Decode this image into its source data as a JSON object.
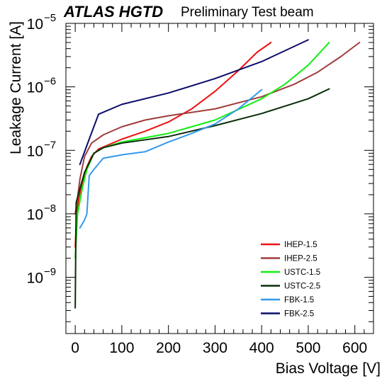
{
  "header": {
    "experiment": "ATLAS HGTD",
    "status": "Preliminary Test beam"
  },
  "chart_data": {
    "type": "line",
    "xlabel": "Bias Voltage [V]",
    "ylabel": "Leakage Current [A]",
    "xlim": [
      -20,
      640
    ],
    "ylim": [
      1.3e-10,
      1e-05
    ],
    "yscale": "log",
    "x_ticks": [
      "0",
      "100",
      "200",
      "300",
      "400",
      "500",
      "600"
    ],
    "y_ticks": [
      {
        "base": "10",
        "exp": "−9"
      },
      {
        "base": "10",
        "exp": "−8"
      },
      {
        "base": "10",
        "exp": "−7"
      },
      {
        "base": "10",
        "exp": "−6"
      },
      {
        "base": "10",
        "exp": "−5"
      }
    ],
    "legend_position": "bottom-right",
    "series": [
      {
        "name": "IHEP-1.5",
        "color": "#ee1111",
        "points": [
          [
            0,
            3e-09
          ],
          [
            3,
            1e-08
          ],
          [
            8,
            1.8e-08
          ],
          [
            15,
            3e-08
          ],
          [
            25,
            5.5e-08
          ],
          [
            35,
            8e-08
          ],
          [
            50,
            1.05e-07
          ],
          [
            100,
            1.5e-07
          ],
          [
            150,
            2e-07
          ],
          [
            200,
            2.8e-07
          ],
          [
            250,
            4.5e-07
          ],
          [
            300,
            8.5e-07
          ],
          [
            350,
            1.8e-06
          ],
          [
            390,
            3.5e-06
          ],
          [
            420,
            5e-06
          ]
        ]
      },
      {
        "name": "IHEP-2.5",
        "color": "#a03c3c",
        "points": [
          [
            0,
            1e-08
          ],
          [
            5,
            1.8e-08
          ],
          [
            10,
            3.5e-08
          ],
          [
            20,
            8e-08
          ],
          [
            35,
            1.3e-07
          ],
          [
            60,
            1.75e-07
          ],
          [
            100,
            2.35e-07
          ],
          [
            150,
            3e-07
          ],
          [
            200,
            3.5e-07
          ],
          [
            300,
            4.5e-07
          ],
          [
            400,
            7e-07
          ],
          [
            470,
            1.1e-06
          ],
          [
            520,
            1.7e-06
          ],
          [
            570,
            3e-06
          ],
          [
            610,
            5e-06
          ]
        ]
      },
      {
        "name": "USTC-1.5",
        "color": "#11ee11",
        "points": [
          [
            0,
            2e-09
          ],
          [
            5,
            1e-08
          ],
          [
            15,
            2.5e-08
          ],
          [
            25,
            5e-08
          ],
          [
            40,
            9e-08
          ],
          [
            60,
            1.1e-07
          ],
          [
            100,
            1.35e-07
          ],
          [
            200,
            1.85e-07
          ],
          [
            300,
            3e-07
          ],
          [
            400,
            6.5e-07
          ],
          [
            450,
            1.1e-06
          ],
          [
            500,
            2.2e-06
          ],
          [
            545,
            5e-06
          ]
        ]
      },
      {
        "name": "USTC-2.5",
        "color": "#0a2e0a",
        "points": [
          [
            0,
            3.3e-10
          ],
          [
            2,
            1.5e-08
          ],
          [
            10,
            2.5e-08
          ],
          [
            20,
            4.5e-08
          ],
          [
            40,
            9e-08
          ],
          [
            60,
            1.1e-07
          ],
          [
            100,
            1.3e-07
          ],
          [
            200,
            1.65e-07
          ],
          [
            300,
            2.45e-07
          ],
          [
            400,
            3.8e-07
          ],
          [
            500,
            6.5e-07
          ],
          [
            545,
            9.3e-07
          ]
        ]
      },
      {
        "name": "FBK-1.5",
        "color": "#3399ee",
        "points": [
          [
            10,
            6e-09
          ],
          [
            20,
            8e-09
          ],
          [
            25,
            1e-08
          ],
          [
            30,
            4e-08
          ],
          [
            40,
            5e-08
          ],
          [
            60,
            7.5e-08
          ],
          [
            100,
            8.5e-08
          ],
          [
            150,
            9.5e-08
          ],
          [
            200,
            1.35e-07
          ],
          [
            250,
            1.85e-07
          ],
          [
            300,
            2.6e-07
          ],
          [
            350,
            4.5e-07
          ],
          [
            400,
            9e-07
          ]
        ]
      },
      {
        "name": "FBK-2.5",
        "color": "#0c0c6a",
        "points": [
          [
            10,
            6e-08
          ],
          [
            30,
            1.5e-07
          ],
          [
            50,
            3.7e-07
          ],
          [
            100,
            5.3e-07
          ],
          [
            200,
            8e-07
          ],
          [
            300,
            1.35e-06
          ],
          [
            400,
            2.5e-06
          ],
          [
            500,
            5.5e-06
          ]
        ]
      }
    ]
  }
}
